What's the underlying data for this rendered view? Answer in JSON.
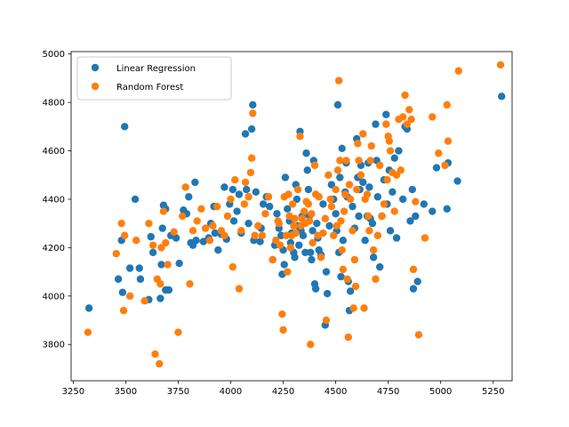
{
  "chart_data": {
    "type": "scatter",
    "title": "",
    "xlabel": "",
    "ylabel": "",
    "xlim": [
      3240,
      5340
    ],
    "ylim": [
      3650,
      5010
    ],
    "x_ticks": [
      3250,
      3500,
      3750,
      4000,
      4250,
      4500,
      4750,
      5000,
      5250
    ],
    "y_ticks": [
      3800,
      4000,
      4200,
      4400,
      4600,
      4800,
      5000
    ],
    "grid": false,
    "legend_position": "top-left",
    "series": [
      {
        "name": "Linear Regression",
        "color": "#1f77b4",
        "points": [
          [
            3325,
            3950
          ],
          [
            3465,
            4070
          ],
          [
            3480,
            4230
          ],
          [
            3485,
            4015
          ],
          [
            3495,
            4700
          ],
          [
            3520,
            4115
          ],
          [
            3545,
            4400
          ],
          [
            3565,
            4115
          ],
          [
            3570,
            4070
          ],
          [
            3610,
            3985
          ],
          [
            3620,
            4245
          ],
          [
            3630,
            4180
          ],
          [
            3665,
            3990
          ],
          [
            3670,
            4130
          ],
          [
            3675,
            4280
          ],
          [
            3680,
            4375
          ],
          [
            3690,
            4360
          ],
          [
            3690,
            4025
          ],
          [
            3705,
            4025
          ],
          [
            3715,
            4250
          ],
          [
            3740,
            4240
          ],
          [
            3755,
            4135
          ],
          [
            3775,
            4355
          ],
          [
            3790,
            4340
          ],
          [
            3800,
            4410
          ],
          [
            3810,
            4220
          ],
          [
            3820,
            4210
          ],
          [
            3830,
            4470
          ],
          [
            3835,
            4230
          ],
          [
            3870,
            4225
          ],
          [
            3895,
            4240
          ],
          [
            3905,
            4300
          ],
          [
            3920,
            4370
          ],
          [
            3925,
            4260
          ],
          [
            3940,
            4190
          ],
          [
            3955,
            4255
          ],
          [
            3970,
            4450
          ],
          [
            3980,
            4235
          ],
          [
            3995,
            4380
          ],
          [
            4010,
            4440
          ],
          [
            4015,
            4310
          ],
          [
            4030,
            4350
          ],
          [
            4040,
            4420
          ],
          [
            4050,
            4260
          ],
          [
            4070,
            4670
          ],
          [
            4075,
            4440
          ],
          [
            4085,
            4300
          ],
          [
            4100,
            4690
          ],
          [
            4105,
            4790
          ],
          [
            4110,
            4230
          ],
          [
            4120,
            4430
          ],
          [
            4140,
            4225
          ],
          [
            4145,
            4280
          ],
          [
            4155,
            4380
          ],
          [
            4170,
            4410
          ],
          [
            4185,
            4370
          ],
          [
            4200,
            4150
          ],
          [
            4210,
            4210
          ],
          [
            4220,
            4340
          ],
          [
            4230,
            4280
          ],
          [
            4240,
            4250
          ],
          [
            4245,
            4090
          ],
          [
            4250,
            4190
          ],
          [
            4255,
            4130
          ],
          [
            4260,
            4490
          ],
          [
            4270,
            4360
          ],
          [
            4280,
            4310
          ],
          [
            4285,
            4220
          ],
          [
            4290,
            4260
          ],
          [
            4300,
            4180
          ],
          [
            4305,
            4160
          ],
          [
            4310,
            4460
          ],
          [
            4315,
            4400
          ],
          [
            4320,
            4290
          ],
          [
            4325,
            4210
          ],
          [
            4330,
            4680
          ],
          [
            4335,
            4270
          ],
          [
            4340,
            4330
          ],
          [
            4345,
            4250
          ],
          [
            4355,
            4180
          ],
          [
            4360,
            4590
          ],
          [
            4365,
            4520
          ],
          [
            4370,
            4440
          ],
          [
            4375,
            4330
          ],
          [
            4380,
            4180
          ],
          [
            4385,
            4150
          ],
          [
            4390,
            4270
          ],
          [
            4395,
            4560
          ],
          [
            4400,
            4050
          ],
          [
            4405,
            4030
          ],
          [
            4410,
            4300
          ],
          [
            4415,
            4240
          ],
          [
            4420,
            4190
          ],
          [
            4430,
            4170
          ],
          [
            4440,
            4380
          ],
          [
            4450,
            3880
          ],
          [
            4455,
            4100
          ],
          [
            4460,
            4010
          ],
          [
            4470,
            4290
          ],
          [
            4480,
            4460
          ],
          [
            4490,
            4400
          ],
          [
            4500,
            4340
          ],
          [
            4505,
            4270
          ],
          [
            4510,
            4790
          ],
          [
            4515,
            4180
          ],
          [
            4520,
            4490
          ],
          [
            4525,
            4080
          ],
          [
            4530,
            4610
          ],
          [
            4535,
            4230
          ],
          [
            4545,
            4430
          ],
          [
            4550,
            4550
          ],
          [
            4555,
            4410
          ],
          [
            4560,
            4060
          ],
          [
            4565,
            3940
          ],
          [
            4570,
            4020
          ],
          [
            4580,
            4370
          ],
          [
            4590,
            4280
          ],
          [
            4600,
            4650
          ],
          [
            4605,
            4490
          ],
          [
            4610,
            4330
          ],
          [
            4615,
            4440
          ],
          [
            4620,
            4540
          ],
          [
            4630,
            4470
          ],
          [
            4640,
            4230
          ],
          [
            4650,
            4330
          ],
          [
            4655,
            4550
          ],
          [
            4660,
            4450
          ],
          [
            4665,
            4320
          ],
          [
            4675,
            4300
          ],
          [
            4680,
            4160
          ],
          [
            4690,
            4710
          ],
          [
            4695,
            4560
          ],
          [
            4700,
            4410
          ],
          [
            4710,
            4120
          ],
          [
            4720,
            4330
          ],
          [
            4730,
            4480
          ],
          [
            4740,
            4750
          ],
          [
            4745,
            4380
          ],
          [
            4755,
            4520
          ],
          [
            4760,
            4270
          ],
          [
            4770,
            4430
          ],
          [
            4780,
            4570
          ],
          [
            4790,
            4240
          ],
          [
            4800,
            4600
          ],
          [
            4820,
            4400
          ],
          [
            4830,
            4700
          ],
          [
            4840,
            4690
          ],
          [
            4855,
            4310
          ],
          [
            4865,
            4440
          ],
          [
            4870,
            4030
          ],
          [
            4880,
            4330
          ],
          [
            4890,
            4060
          ],
          [
            4920,
            4380
          ],
          [
            4960,
            4350
          ],
          [
            4980,
            4530
          ],
          [
            5030,
            4360
          ],
          [
            5035,
            4550
          ],
          [
            5080,
            4475
          ],
          [
            5290,
            4825
          ]
        ]
      },
      {
        "name": "Random Forest",
        "color": "#ff7f0e",
        "points": [
          [
            3320,
            3850
          ],
          [
            3455,
            4175
          ],
          [
            3480,
            4300
          ],
          [
            3490,
            3940
          ],
          [
            3495,
            4250
          ],
          [
            3520,
            4000
          ],
          [
            3550,
            4230
          ],
          [
            3590,
            3980
          ],
          [
            3610,
            4300
          ],
          [
            3630,
            4210
          ],
          [
            3640,
            3760
          ],
          [
            3650,
            4070
          ],
          [
            3660,
            3720
          ],
          [
            3665,
            4050
          ],
          [
            3670,
            4200
          ],
          [
            3680,
            4350
          ],
          [
            3690,
            4220
          ],
          [
            3700,
            4130
          ],
          [
            3730,
            4265
          ],
          [
            3750,
            3850
          ],
          [
            3770,
            4330
          ],
          [
            3785,
            4450
          ],
          [
            3805,
            4050
          ],
          [
            3820,
            4270
          ],
          [
            3840,
            4310
          ],
          [
            3860,
            4360
          ],
          [
            3880,
            4280
          ],
          [
            3900,
            4230
          ],
          [
            3915,
            4290
          ],
          [
            3935,
            4370
          ],
          [
            3955,
            4270
          ],
          [
            3970,
            4250
          ],
          [
            3985,
            4330
          ],
          [
            4000,
            4400
          ],
          [
            4010,
            4120
          ],
          [
            4020,
            4480
          ],
          [
            4040,
            4030
          ],
          [
            4050,
            4270
          ],
          [
            4065,
            4380
          ],
          [
            4070,
            4470
          ],
          [
            4085,
            4410
          ],
          [
            4095,
            4510
          ],
          [
            4100,
            4570
          ],
          [
            4105,
            4755
          ],
          [
            4115,
            4250
          ],
          [
            4130,
            4290
          ],
          [
            4150,
            4250
          ],
          [
            4165,
            4340
          ],
          [
            4180,
            4410
          ],
          [
            4200,
            4150
          ],
          [
            4215,
            4230
          ],
          [
            4225,
            4310
          ],
          [
            4230,
            4300
          ],
          [
            4235,
            4210
          ],
          [
            4245,
            3925
          ],
          [
            4250,
            3860
          ],
          [
            4255,
            4410
          ],
          [
            4265,
            4250
          ],
          [
            4270,
            4100
          ],
          [
            4275,
            4420
          ],
          [
            4280,
            4330
          ],
          [
            4285,
            4200
          ],
          [
            4290,
            4250
          ],
          [
            4295,
            4380
          ],
          [
            4300,
            4290
          ],
          [
            4305,
            4320
          ],
          [
            4310,
            4260
          ],
          [
            4320,
            4440
          ],
          [
            4330,
            4660
          ],
          [
            4335,
            4290
          ],
          [
            4340,
            4320
          ],
          [
            4350,
            4350
          ],
          [
            4355,
            4300
          ],
          [
            4360,
            4390
          ],
          [
            4370,
            4380
          ],
          [
            4375,
            4310
          ],
          [
            4380,
            3800
          ],
          [
            4385,
            4340
          ],
          [
            4390,
            4220
          ],
          [
            4400,
            4540
          ],
          [
            4405,
            4420
          ],
          [
            4415,
            4250
          ],
          [
            4420,
            4410
          ],
          [
            4430,
            4160
          ],
          [
            4440,
            4260
          ],
          [
            4450,
            4320
          ],
          [
            4455,
            3900
          ],
          [
            4465,
            4500
          ],
          [
            4475,
            4400
          ],
          [
            4480,
            4370
          ],
          [
            4490,
            4250
          ],
          [
            4500,
            4440
          ],
          [
            4505,
            4290
          ],
          [
            4510,
            4520
          ],
          [
            4515,
            4890
          ],
          [
            4520,
            4560
          ],
          [
            4525,
            4310
          ],
          [
            4530,
            4190
          ],
          [
            4535,
            4110
          ],
          [
            4540,
            4350
          ],
          [
            4545,
            4420
          ],
          [
            4550,
            4560
          ],
          [
            4555,
            4070
          ],
          [
            4560,
            3830
          ],
          [
            4565,
            4460
          ],
          [
            4570,
            4400
          ],
          [
            4580,
            4270
          ],
          [
            4585,
            3950
          ],
          [
            4590,
            4150
          ],
          [
            4595,
            4040
          ],
          [
            4600,
            4440
          ],
          [
            4605,
            4630
          ],
          [
            4610,
            4560
          ],
          [
            4620,
            4500
          ],
          [
            4630,
            4670
          ],
          [
            4635,
            3950
          ],
          [
            4640,
            4400
          ],
          [
            4650,
            4420
          ],
          [
            4655,
            4330
          ],
          [
            4660,
            4270
          ],
          [
            4665,
            4560
          ],
          [
            4670,
            4620
          ],
          [
            4680,
            4190
          ],
          [
            4690,
            4070
          ],
          [
            4700,
            4250
          ],
          [
            4710,
            4540
          ],
          [
            4720,
            4330
          ],
          [
            4730,
            4380
          ],
          [
            4740,
            4710
          ],
          [
            4745,
            4480
          ],
          [
            4750,
            4660
          ],
          [
            4755,
            4640
          ],
          [
            4760,
            4600
          ],
          [
            4770,
            4510
          ],
          [
            4780,
            4350
          ],
          [
            4790,
            4500
          ],
          [
            4800,
            4730
          ],
          [
            4810,
            4520
          ],
          [
            4820,
            4740
          ],
          [
            4830,
            4830
          ],
          [
            4840,
            4710
          ],
          [
            4850,
            4770
          ],
          [
            4860,
            4730
          ],
          [
            4870,
            4110
          ],
          [
            4880,
            4390
          ],
          [
            4895,
            3840
          ],
          [
            4925,
            4240
          ],
          [
            4960,
            4740
          ],
          [
            4990,
            4590
          ],
          [
            5020,
            4540
          ],
          [
            5030,
            4790
          ],
          [
            5035,
            4640
          ],
          [
            5085,
            4930
          ],
          [
            5285,
            4955
          ]
        ]
      }
    ]
  }
}
